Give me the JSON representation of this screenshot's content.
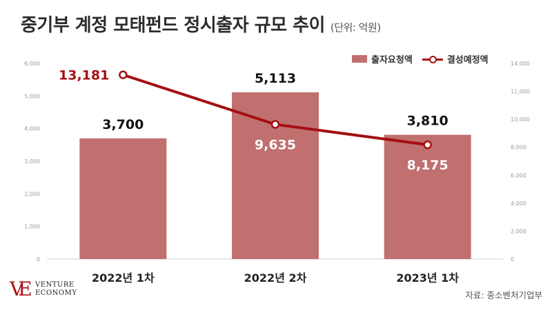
{
  "header": {
    "title": "중기부 계정 모태펀드 정시출자 규모 추이",
    "unit": "(단위: 억원)"
  },
  "legend": {
    "bar_label": "출자요청액",
    "line_label": "결성예정액"
  },
  "footer": {
    "source": "자료: 중소벤처기업부",
    "logo_line1": "VENTURE",
    "logo_line2": "ECONOMY",
    "logo_mark": "VE"
  },
  "colors": {
    "bar": "#c0706f",
    "line": "#a50f12",
    "axis": "#999999"
  },
  "chart_data": {
    "type": "bar",
    "categories": [
      "2022년 1차",
      "2022년 2차",
      "2023년 1차"
    ],
    "series": [
      {
        "name": "출자요청액",
        "type": "bar",
        "axis": "left",
        "values": [
          3700,
          5113,
          3810
        ],
        "labels": [
          "3,700",
          "5,113",
          "3,810"
        ]
      },
      {
        "name": "결성예정액",
        "type": "line",
        "axis": "right",
        "values": [
          13181,
          9635,
          8175
        ],
        "labels": [
          "13,181",
          "9,635",
          "8,175"
        ]
      }
    ],
    "left_axis": {
      "ylim": [
        0,
        6000
      ],
      "ticks": [
        "0",
        "1,000",
        "2,000",
        "3,000",
        "4,000",
        "5,000",
        "6,000"
      ]
    },
    "right_axis": {
      "ylim": [
        0,
        14000
      ],
      "ticks": [
        "0",
        "2,000",
        "4,000",
        "6,000",
        "8,000",
        "10,000",
        "12,000",
        "14,000"
      ]
    },
    "grid": false,
    "legend_position": "top-right"
  }
}
